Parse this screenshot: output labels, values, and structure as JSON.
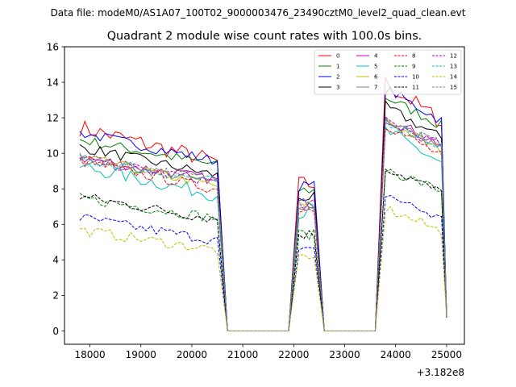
{
  "suptitle": "Data file: modeM0/AS1A07_100T02_9000003476_23490cztM0_level2_quad_clean.evt",
  "chart_data": {
    "type": "line",
    "title": "Quadrant 2 module wise count rates with 100.0s bins.",
    "xlabel": "",
    "ylabel": "",
    "x_offset_label": "+3.182e8",
    "xlim": [
      17500,
      25350
    ],
    "ylim": [
      -0.75,
      16
    ],
    "xticks": [
      18000,
      19000,
      20000,
      21000,
      22000,
      23000,
      24000,
      25000
    ],
    "xtick_labels": [
      "18000",
      "19000",
      "20000",
      "21000",
      "22000",
      "23000",
      "24000",
      "25000"
    ],
    "yticks": [
      0,
      2,
      4,
      6,
      8,
      10,
      12,
      14,
      16
    ],
    "ytick_labels": [
      "0",
      "2",
      "4",
      "6",
      "8",
      "10",
      "12",
      "14",
      "16"
    ],
    "legend_position": "top-right",
    "segments": [
      {
        "x_start": 17800,
        "x_end": 20500,
        "level": 1.0
      },
      {
        "x_start": 20700,
        "x_end": 21900,
        "level": 0.0
      },
      {
        "x_start": 22100,
        "x_end": 22400,
        "level": 0.8
      },
      {
        "x_start": 22600,
        "x_end": 23600,
        "level": 0.0
      },
      {
        "x_start": 23800,
        "x_end": 24900,
        "level": 1.25
      },
      {
        "x_start": 25000,
        "x_end": 25000,
        "level": 0.07
      }
    ],
    "series": [
      {
        "name": "0",
        "color": "#ff0000",
        "dash": "solid",
        "level": 10.3,
        "slope": 1.2,
        "noise": 0.5
      },
      {
        "name": "1",
        "color": "#008000",
        "dash": "solid",
        "level": 9.9,
        "slope": 0.9,
        "noise": 0.3
      },
      {
        "name": "2",
        "color": "#0000ff",
        "dash": "solid",
        "level": 10.2,
        "slope": 1.0,
        "noise": 0.3
      },
      {
        "name": "3",
        "color": "#000000",
        "dash": "solid",
        "level": 9.4,
        "slope": 1.0,
        "noise": 0.3
      },
      {
        "name": "4",
        "color": "#bf00bf",
        "dash": "solid",
        "level": 9.0,
        "slope": 0.8,
        "noise": 0.3
      },
      {
        "name": "5",
        "color": "#00bfbf",
        "dash": "solid",
        "level": 8.3,
        "slope": 1.0,
        "noise": 0.4
      },
      {
        "name": "6",
        "color": "#bfbf00",
        "dash": "solid",
        "level": 8.8,
        "slope": 1.0,
        "noise": 0.3
      },
      {
        "name": "7",
        "color": "#808080",
        "dash": "solid",
        "level": 8.9,
        "slope": 0.9,
        "noise": 0.3
      },
      {
        "name": "8",
        "color": "#ff0000",
        "dash": "dashed",
        "level": 8.6,
        "slope": 1.0,
        "noise": 0.3
      },
      {
        "name": "9",
        "color": "#008000",
        "dash": "dashed",
        "level": 6.8,
        "slope": 0.7,
        "noise": 0.3
      },
      {
        "name": "10",
        "color": "#0000ff",
        "dash": "dashed",
        "level": 5.6,
        "slope": 0.8,
        "noise": 0.3
      },
      {
        "name": "11",
        "color": "#000000",
        "dash": "dashed",
        "level": 6.8,
        "slope": 0.8,
        "noise": 0.3
      },
      {
        "name": "12",
        "color": "#bf00bf",
        "dash": "dashed",
        "level": 8.9,
        "slope": 0.8,
        "noise": 0.3
      },
      {
        "name": "13",
        "color": "#00bfbf",
        "dash": "dashed",
        "level": 8.9,
        "slope": 0.8,
        "noise": 0.3
      },
      {
        "name": "14",
        "color": "#bfbf00",
        "dash": "dashed",
        "level": 5.0,
        "slope": 0.7,
        "noise": 0.3
      },
      {
        "name": "15",
        "color": "#808080",
        "dash": "dashed",
        "level": 9.0,
        "slope": 0.8,
        "noise": 0.3
      }
    ]
  }
}
